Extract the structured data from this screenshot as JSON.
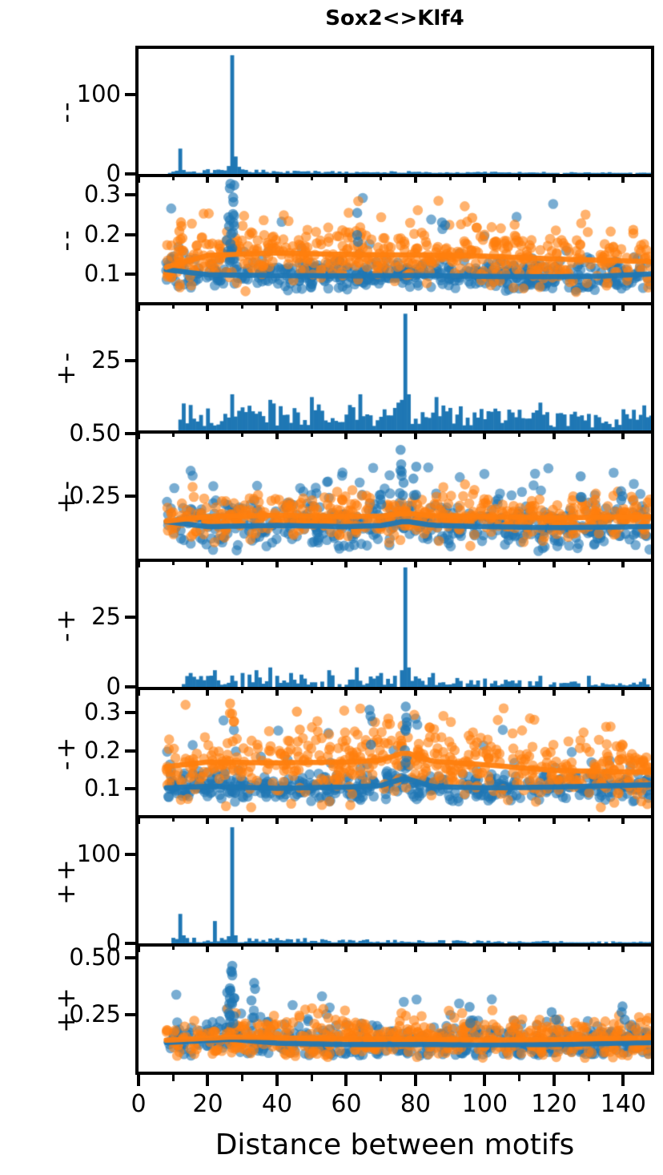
{
  "figure": {
    "title": "Sox2<>Klf4",
    "xlabel": "Distance between motifs",
    "colors": {
      "blue": "#1f77b4",
      "orange": "#ff7f0e",
      "frame": "#000000",
      "background": "#ffffff"
    }
  },
  "axis_x": {
    "lim": [
      0,
      148
    ],
    "major_ticks": [
      0,
      20,
      40,
      60,
      80,
      100,
      120,
      140
    ],
    "tick_labels": [
      "0",
      "20",
      "40",
      "60",
      "80",
      "100",
      "120",
      "140"
    ],
    "minor_ticks": [
      10,
      30,
      50,
      70,
      90,
      110,
      130
    ]
  },
  "chart_data": [
    {
      "id": "hist-minus-minus",
      "type": "bar",
      "group_label": "--",
      "ylim": [
        0,
        158
      ],
      "yticks": [
        0,
        100
      ],
      "ytick_labels": [
        "0",
        "100"
      ],
      "series_color": "blue",
      "seed": 101,
      "bins": {
        "start": 9,
        "end": 148,
        "base_profile": [
          [
            9,
            2.5
          ],
          [
            14,
            3
          ],
          [
            25,
            3.5
          ],
          [
            35,
            3
          ],
          [
            60,
            2.2
          ],
          [
            90,
            1.8
          ],
          [
            120,
            1.4
          ],
          [
            148,
            1.2
          ]
        ],
        "gap_rate": 0.05,
        "peaks": {
          "11": 4,
          "12": 32,
          "13": 5,
          "20": 6,
          "22": 5,
          "26": 10,
          "27": 150,
          "28": 22,
          "29": 9,
          "31": 5
        }
      }
    },
    {
      "id": "scatter-minus-minus",
      "type": "scatter",
      "group_label": "--",
      "ylim": [
        0.03,
        0.345
      ],
      "yticks": [
        0.1,
        0.2,
        0.3
      ],
      "ytick_labels": [
        "0.1",
        "0.2",
        "0.3"
      ],
      "x_range": [
        8,
        148
      ],
      "series": [
        {
          "name": "blue",
          "color": "blue",
          "n": 500,
          "seed": 201,
          "sigma": 0.021,
          "out_rate": 0.025,
          "out_scale": 0.075,
          "ymin": 0.058,
          "ymax": 0.33,
          "trend_x": [
            8,
            20,
            40,
            60,
            80,
            100,
            120,
            135,
            148
          ],
          "trend_y": [
            0.112,
            0.099,
            0.097,
            0.096,
            0.097,
            0.095,
            0.094,
            0.096,
            0.101
          ]
        },
        {
          "name": "orange",
          "color": "orange",
          "n": 500,
          "seed": 202,
          "sigma": 0.034,
          "out_rate": 0.03,
          "out_scale": 0.06,
          "ymin": 0.055,
          "ymax": 0.3,
          "trend_x": [
            8,
            20,
            40,
            60,
            80,
            100,
            120,
            135,
            148
          ],
          "trend_y": [
            0.118,
            0.148,
            0.154,
            0.15,
            0.149,
            0.146,
            0.139,
            0.135,
            0.132
          ]
        }
      ],
      "clusters": [
        {
          "x": 27,
          "color": "blue",
          "y0": 0.13,
          "y1": 0.33,
          "n": 16
        },
        {
          "x": 26,
          "color": "blue",
          "y0": 0.12,
          "y1": 0.27,
          "n": 8
        },
        {
          "x": 12,
          "color": "orange",
          "y0": 0.1,
          "y1": 0.235,
          "n": 12
        },
        {
          "x": 63,
          "color": "blue",
          "y0": 0.15,
          "y1": 0.3,
          "n": 3
        },
        {
          "x": 88,
          "color": "blue",
          "y0": 0.2,
          "y1": 0.285,
          "n": 2
        },
        {
          "x": 97,
          "color": "orange",
          "y0": 0.2,
          "y1": 0.27,
          "n": 2
        },
        {
          "x": 143,
          "color": "orange",
          "y0": 0.2,
          "y1": 0.27,
          "n": 2
        }
      ]
    },
    {
      "id": "hist-plus-minus",
      "type": "bar",
      "group_label": "+-",
      "ylim": [
        0,
        45
      ],
      "yticks": [
        25
      ],
      "ytick_labels": [
        "25"
      ],
      "series_color": "blue",
      "seed": 103,
      "bins": {
        "start": 12,
        "end": 148,
        "base_profile": [
          [
            12,
            5.5
          ],
          [
            40,
            5.5
          ],
          [
            70,
            5.5
          ],
          [
            90,
            5
          ],
          [
            105,
            4.2
          ],
          [
            130,
            4
          ],
          [
            148,
            4.5
          ]
        ],
        "gap_rate": 0.0,
        "peaks": {
          "27": 13,
          "38": 11,
          "50": 12,
          "64": 13,
          "75": 10,
          "76": 11,
          "77": 42,
          "78": 13,
          "86": 12,
          "116": 10,
          "146": 9
        }
      }
    },
    {
      "id": "scatter-plus-minus",
      "type": "scatter",
      "group_label": "+-",
      "ylim": [
        0,
        0.5
      ],
      "yticks": [
        0.25,
        0.5
      ],
      "ytick_labels": [
        "0.25",
        "0.50"
      ],
      "x_range": [
        8,
        148
      ],
      "series": [
        {
          "name": "blue",
          "color": "blue",
          "n": 500,
          "seed": 203,
          "sigma": 0.05,
          "out_rate": 0.05,
          "out_scale": 0.09,
          "ymin": 0.03,
          "ymax": 0.46,
          "trend_x": [
            8,
            20,
            40,
            60,
            70,
            77,
            85,
            100,
            120,
            148
          ],
          "trend_y": [
            0.148,
            0.128,
            0.133,
            0.128,
            0.132,
            0.15,
            0.133,
            0.128,
            0.124,
            0.128
          ]
        },
        {
          "name": "orange",
          "color": "orange",
          "n": 500,
          "seed": 204,
          "sigma": 0.042,
          "out_rate": 0.02,
          "out_scale": 0.05,
          "ymin": 0.03,
          "ymax": 0.3,
          "trend_x": [
            8,
            20,
            40,
            60,
            70,
            77,
            85,
            100,
            120,
            148
          ],
          "trend_y": [
            0.15,
            0.168,
            0.173,
            0.168,
            0.17,
            0.182,
            0.172,
            0.168,
            0.163,
            0.168
          ]
        }
      ],
      "clusters": [
        {
          "x": 76,
          "color": "blue",
          "y0": 0.25,
          "y1": 0.46,
          "n": 8
        },
        {
          "x": 80,
          "color": "blue",
          "y0": 0.22,
          "y1": 0.38,
          "n": 4
        },
        {
          "x": 70,
          "color": "blue",
          "y0": 0.2,
          "y1": 0.33,
          "n": 3
        },
        {
          "x": 128,
          "color": "blue",
          "y0": 0.2,
          "y1": 0.33,
          "n": 3
        },
        {
          "x": 140,
          "color": "blue",
          "y0": 0.2,
          "y1": 0.3,
          "n": 3
        }
      ]
    },
    {
      "id": "hist-minus-plus",
      "type": "bar",
      "group_label": "-+",
      "ylim": [
        0,
        45
      ],
      "yticks": [
        0,
        25
      ],
      "ytick_labels": [
        "0",
        "25"
      ],
      "series_color": "blue",
      "seed": 105,
      "bins": {
        "start": 13,
        "end": 148,
        "base_profile": [
          [
            13,
            2.2
          ],
          [
            30,
            2.6
          ],
          [
            45,
            2.4
          ],
          [
            70,
            2.4
          ],
          [
            85,
            2
          ],
          [
            100,
            1.6
          ],
          [
            120,
            1.1
          ],
          [
            148,
            1
          ]
        ],
        "gap_rate": 0.18,
        "peaks": {
          "15": 5,
          "22": 6,
          "30": 5,
          "34": 6,
          "38": 7,
          "44": 5,
          "55": 6,
          "63": 7,
          "70": 5,
          "74": 4,
          "76": 6,
          "77": 43,
          "78": 7,
          "85": 5,
          "100": 3,
          "116": 4,
          "130": 4,
          "146": 3
        }
      }
    },
    {
      "id": "scatter-minus-plus",
      "type": "scatter",
      "group_label": "-+",
      "ylim": [
        0.03,
        0.36
      ],
      "yticks": [
        0.1,
        0.2,
        0.3
      ],
      "ytick_labels": [
        "0.1",
        "0.2",
        "0.3"
      ],
      "x_range": [
        8,
        148
      ],
      "series": [
        {
          "name": "blue",
          "color": "blue",
          "n": 500,
          "seed": 205,
          "sigma": 0.02,
          "out_rate": 0.03,
          "out_scale": 0.06,
          "ymin": 0.06,
          "ymax": 0.3,
          "trend_x": [
            8,
            20,
            40,
            60,
            70,
            77,
            85,
            100,
            120,
            148
          ],
          "trend_y": [
            0.102,
            0.106,
            0.101,
            0.104,
            0.108,
            0.128,
            0.105,
            0.102,
            0.104,
            0.11
          ]
        },
        {
          "name": "orange",
          "color": "orange",
          "n": 500,
          "seed": 206,
          "sigma": 0.046,
          "out_rate": 0.04,
          "out_scale": 0.06,
          "ymin": 0.05,
          "ymax": 0.335,
          "trend_x": [
            8,
            20,
            40,
            60,
            70,
            77,
            85,
            100,
            120,
            148
          ],
          "trend_y": [
            0.158,
            0.17,
            0.168,
            0.17,
            0.175,
            0.196,
            0.172,
            0.163,
            0.148,
            0.143
          ]
        }
      ],
      "clusters": [
        {
          "x": 77,
          "color": "blue",
          "y0": 0.12,
          "y1": 0.32,
          "n": 10
        },
        {
          "x": 67,
          "color": "blue",
          "y0": 0.2,
          "y1": 0.35,
          "n": 3
        },
        {
          "x": 27,
          "color": "orange",
          "y0": 0.2,
          "y1": 0.33,
          "n": 4
        },
        {
          "x": 46,
          "color": "orange",
          "y0": 0.2,
          "y1": 0.31,
          "n": 3
        }
      ]
    },
    {
      "id": "hist-plus-plus",
      "type": "bar",
      "group_label": "++",
      "ylim": [
        0,
        140
      ],
      "yticks": [
        0,
        100
      ],
      "ytick_labels": [
        "0",
        "100"
      ],
      "series_color": "blue",
      "seed": 107,
      "bins": {
        "start": 10,
        "end": 148,
        "base_profile": [
          [
            10,
            3.5
          ],
          [
            20,
            4
          ],
          [
            35,
            3
          ],
          [
            60,
            2.5
          ],
          [
            90,
            2
          ],
          [
            120,
            1.5
          ],
          [
            148,
            1.1
          ]
        ],
        "gap_rate": 0.06,
        "peaks": {
          "12": 33,
          "13": 9,
          "14": 6,
          "22": 25,
          "24": 6,
          "26": 8,
          "27": 130,
          "28": 9,
          "40": 6,
          "48": 6
        }
      }
    },
    {
      "id": "scatter-plus-plus",
      "type": "scatter",
      "group_label": "++",
      "ylim": [
        0,
        0.55
      ],
      "yticks": [
        0.25,
        0.5
      ],
      "ytick_labels": [
        "0.25",
        "0.50"
      ],
      "x_range": [
        8,
        148
      ],
      "series": [
        {
          "name": "blue",
          "color": "blue",
          "n": 500,
          "seed": 207,
          "sigma": 0.042,
          "out_rate": 0.03,
          "out_scale": 0.07,
          "ymin": 0.07,
          "ymax": 0.34,
          "trend_x": [
            8,
            27,
            40,
            60,
            80,
            100,
            120,
            148
          ],
          "trend_y": [
            0.128,
            0.142,
            0.125,
            0.119,
            0.119,
            0.118,
            0.119,
            0.128
          ]
        },
        {
          "name": "orange",
          "color": "orange",
          "n": 500,
          "seed": 208,
          "sigma": 0.045,
          "out_rate": 0.03,
          "out_scale": 0.06,
          "ymin": 0.06,
          "ymax": 0.31,
          "trend_x": [
            8,
            27,
            40,
            60,
            80,
            100,
            120,
            148
          ],
          "trend_y": [
            0.138,
            0.152,
            0.149,
            0.144,
            0.143,
            0.139,
            0.141,
            0.149
          ]
        }
      ],
      "clusters": [
        {
          "x": 27,
          "color": "blue",
          "y0": 0.2,
          "y1": 0.52,
          "n": 14
        },
        {
          "x": 26,
          "color": "blue",
          "y0": 0.18,
          "y1": 0.35,
          "n": 6
        },
        {
          "x": 33,
          "color": "blue",
          "y0": 0.22,
          "y1": 0.4,
          "n": 4
        },
        {
          "x": 96,
          "color": "blue",
          "y0": 0.2,
          "y1": 0.3,
          "n": 2
        },
        {
          "x": 120,
          "color": "blue",
          "y0": 0.22,
          "y1": 0.3,
          "n": 2
        },
        {
          "x": 140,
          "color": "blue",
          "y0": 0.22,
          "y1": 0.31,
          "n": 3
        }
      ]
    }
  ]
}
